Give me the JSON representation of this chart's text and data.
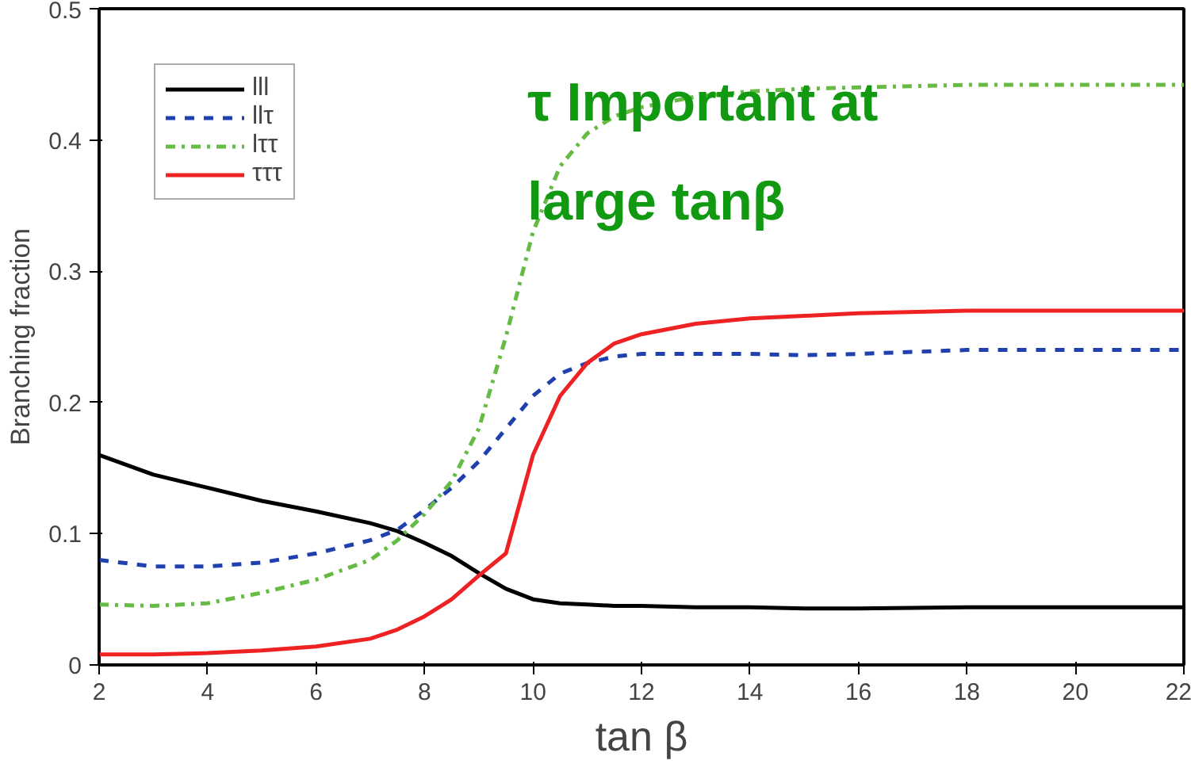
{
  "chart_data": {
    "type": "line",
    "xlabel": "tan β",
    "ylabel": "Branching fraction",
    "x": [
      2,
      3,
      4,
      5,
      6,
      7,
      7.5,
      8,
      8.5,
      9,
      9.5,
      10,
      10.5,
      11,
      11.5,
      12,
      13,
      14,
      15,
      16,
      18,
      20,
      22
    ],
    "series": [
      {
        "name": "lll",
        "color": "#000000",
        "line_style": "solid",
        "values": [
          0.16,
          0.145,
          0.135,
          0.125,
          0.117,
          0.108,
          0.102,
          0.093,
          0.083,
          0.07,
          0.058,
          0.05,
          0.047,
          0.046,
          0.045,
          0.045,
          0.044,
          0.044,
          0.043,
          0.043,
          0.044,
          0.044,
          0.044
        ]
      },
      {
        "name": "llτ",
        "color": "#2040b0",
        "line_style": "dashed",
        "values": [
          0.08,
          0.075,
          0.075,
          0.078,
          0.085,
          0.095,
          0.103,
          0.118,
          0.135,
          0.155,
          0.18,
          0.205,
          0.222,
          0.23,
          0.235,
          0.237,
          0.237,
          0.237,
          0.236,
          0.237,
          0.24,
          0.24,
          0.24
        ]
      },
      {
        "name": "lττ",
        "color": "#66bb44",
        "line_style": "dashdot",
        "values": [
          0.046,
          0.045,
          0.047,
          0.055,
          0.065,
          0.08,
          0.095,
          0.115,
          0.14,
          0.18,
          0.25,
          0.33,
          0.38,
          0.405,
          0.418,
          0.425,
          0.433,
          0.437,
          0.439,
          0.44,
          0.442,
          0.442,
          0.442
        ]
      },
      {
        "name": "τττ",
        "color": "#ee2222",
        "line_style": "solid",
        "values": [
          0.008,
          0.008,
          0.009,
          0.011,
          0.014,
          0.02,
          0.027,
          0.037,
          0.05,
          0.068,
          0.085,
          0.16,
          0.205,
          0.23,
          0.245,
          0.252,
          0.26,
          0.264,
          0.266,
          0.268,
          0.27,
          0.27,
          0.27
        ]
      }
    ],
    "xlim": [
      2,
      22
    ],
    "ylim": [
      0,
      0.5
    ],
    "xticks": [
      2,
      4,
      6,
      8,
      10,
      12,
      14,
      16,
      18,
      20,
      22
    ],
    "yticks": [
      0,
      0.1,
      0.2,
      0.3,
      0.4,
      0.5
    ],
    "grid": false,
    "legend": "top left",
    "marker": "none",
    "annotations": [
      "τ Important at large tanβ"
    ]
  }
}
